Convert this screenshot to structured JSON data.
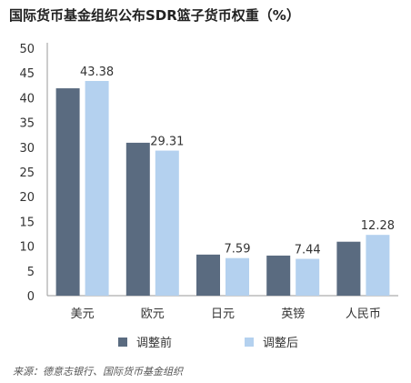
{
  "title": "国际货币基金组织公布SDR篮子货币权重（%）",
  "source": "来源：德意志银行、国际货币基金组织",
  "colors": {
    "before": "#5a6b80",
    "after": "#b4d1ef",
    "axis": "#999999"
  },
  "chart_data": {
    "type": "bar",
    "title": "国际货币基金组织公布SDR篮子货币权重（%）",
    "categories": [
      "美元",
      "欧元",
      "日元",
      "英镑",
      "人民币"
    ],
    "series": [
      {
        "name": "调整前",
        "values": [
          41.9,
          30.9,
          8.3,
          8.1,
          10.9
        ]
      },
      {
        "name": "调整后",
        "values": [
          43.38,
          29.31,
          7.59,
          7.44,
          12.28
        ]
      }
    ],
    "data_labels": [
      "",
      "",
      "",
      "",
      "",
      "43.38",
      "29.31",
      "7.59",
      "7.44",
      "12.28"
    ],
    "yticks": [
      "0",
      "5",
      "10",
      "15",
      "20",
      "25",
      "30",
      "35",
      "40",
      "45",
      "50"
    ],
    "ylim": [
      0,
      50
    ],
    "xlabel": "",
    "ylabel": "",
    "grid": false,
    "legend_position": "bottom"
  }
}
